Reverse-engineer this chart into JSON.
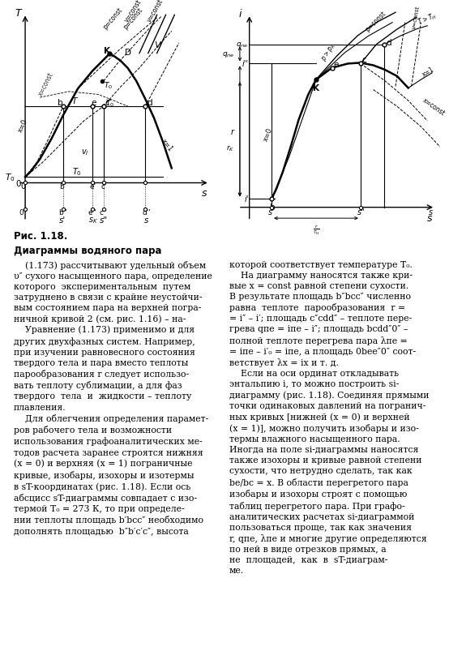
{
  "fig_width": 5.54,
  "fig_height": 8.04,
  "dpi": 100,
  "bg_color": "#ffffff",
  "caption1": "Рис. 1.18.",
  "caption2": "Диаграммы водяного пара",
  "body_left": [
    "    (1.173) рассчитывают удельный объем",
    "υ″ сухого насыщенного пара, определение",
    "которого  экспериментальным  путем",
    "затруднено в связи с крайне неустойчи-",
    "вым состоянием пара на верхней погра-",
    "ничной кривой 2 (см. рис. 1.16) – на-",
    "    Уравнение (1.173) применимо и для",
    "других двухфазных систем. Например,",
    "при изучении равновесного состояния",
    "твердого тела и пара вместо теплоты",
    "парообразования r следует использо-",
    "вать теплоту сублимации, а для фаз",
    "твердого  тела  и  жидкости – теплоту",
    "плавления.",
    "    Для облегчения определения парамет-",
    "ров рабочего тела и возможности",
    "использования графоаналитических ме-",
    "тодов расчета заранее строятся нижняя",
    "(x = 0) и верхняя (x = 1) пограничные",
    "кривые, изобары, изохоры и изотермы",
    "в sT-координатах (рис. 1.18). Если ось",
    "абсцисс sT-диаграммы совпадает с изо-",
    "термой T₀ = 273 К, то при определе-",
    "нии теплоты площадь b′bcc″ необходимо",
    "дополнять площадью  b″b′c′c″, высота"
  ],
  "body_right": [
    "которой соответствует температуре T₀.",
    "    На диаграмму наносятся также кри-",
    "вые x = const равной степени сухости.",
    "В результате площадь b″bcc″ численно",
    "равна  теплоте  парообразования  r =",
    "= i″ – i′; площадь c″cdd″ – теплоте пере-",
    "грева qпе = iпе – i″; площадь bcdd″0″ –",
    "полной теплоте перегрева пара λпе =",
    "= iпе – i′₀ = iпе, а площадь 0bee″0″ соот-",
    "ветствует λx = ix и т. д.",
    "    Если на оси ординат откладывать",
    "энтальпию i, то можно построить si-",
    "диаграмму (рис. 1.18). Соединяя прямыми",
    "точки одинаковых давлений на погранич-",
    "ных кривых [нижней (x = 0) и верхней",
    "(x = 1)], можно получить изобары и изо-",
    "термы влажного насыщенного пара.",
    "Иногда на поле si-диаграммы наносятся",
    "также изохоры и кривые равной степени",
    "сухости, что нетрудно сделать, так как",
    "be/bc = x. В области перегретого пара",
    "изобары и изохоры строят с помощью",
    "таблиц перегретого пара. При графо-",
    "аналитических расчетах si-диаграммой",
    "пользоваться проще, так как значения",
    "r, qпе, λпе и многие другие определяются",
    "по ней в виде отрезков прямых, а",
    "не  площадей,  как  в  sT-диаграм-",
    "ме."
  ]
}
